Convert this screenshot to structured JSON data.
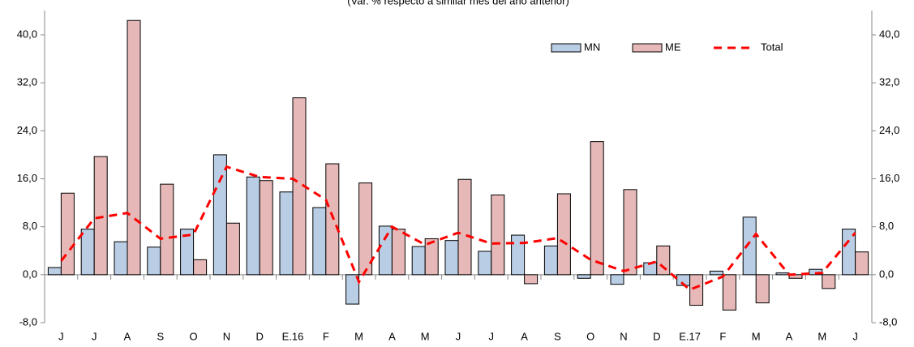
{
  "chart_data": {
    "type": "bar",
    "subtitle": "(Var. % respecto a similar mes del año anterior)",
    "categories": [
      "J",
      "J",
      "A",
      "S",
      "O",
      "N",
      "D",
      "E.16",
      "F",
      "M",
      "A",
      "M",
      "J",
      "J",
      "A",
      "S",
      "O",
      "N",
      "D",
      "E.17",
      "F",
      "M",
      "A",
      "M",
      "J"
    ],
    "series": [
      {
        "name": "MN",
        "type": "bar",
        "color": "#b9cde5",
        "values": [
          1.2,
          7.6,
          5.5,
          4.6,
          7.6,
          20.0,
          16.3,
          13.8,
          11.2,
          -4.9,
          8.1,
          4.7,
          5.7,
          3.9,
          6.6,
          4.8,
          -0.6,
          -1.6,
          2.0,
          -1.8,
          0.6,
          9.6,
          0.3,
          0.9,
          7.6
        ]
      },
      {
        "name": "ME",
        "type": "bar",
        "color": "#e6b9b8",
        "values": [
          13.6,
          19.7,
          42.4,
          15.1,
          2.5,
          8.6,
          15.7,
          29.5,
          18.5,
          15.3,
          7.6,
          6.0,
          15.9,
          13.3,
          -1.5,
          13.5,
          22.2,
          14.2,
          4.8,
          -5.1,
          -5.9,
          -4.7,
          -0.6,
          -2.3,
          3.8
        ]
      },
      {
        "name": "Total",
        "type": "line",
        "color": "#ff0000",
        "values": [
          2.3,
          9.4,
          10.3,
          6.0,
          6.7,
          18.0,
          16.3,
          16.0,
          12.5,
          -1.2,
          8.0,
          5.0,
          7.0,
          5.2,
          5.3,
          6.1,
          2.5,
          0.6,
          2.2,
          -2.5,
          -0.3,
          6.8,
          0.0,
          0.3,
          7.0
        ]
      }
    ],
    "ylim": [
      -8,
      40
    ],
    "yticks": [
      {
        "value": -8,
        "label": "-8,0"
      },
      {
        "value": 0,
        "label": "0,0"
      },
      {
        "value": 8,
        "label": "8,0"
      },
      {
        "value": 16,
        "label": "16,0"
      },
      {
        "value": 24,
        "label": "24,0"
      },
      {
        "value": 32,
        "label": "32,0"
      },
      {
        "value": 40,
        "label": "40,0"
      }
    ],
    "y2lim": [
      -8,
      40
    ],
    "y2ticks": [
      {
        "value": -8,
        "label": "-8,0"
      },
      {
        "value": 0,
        "label": "0,0"
      },
      {
        "value": 8,
        "label": "8,0"
      },
      {
        "value": 16,
        "label": "16,0"
      },
      {
        "value": 24,
        "label": "24,0"
      },
      {
        "value": 32,
        "label": "32,0"
      },
      {
        "value": 40,
        "label": "40,0"
      }
    ],
    "legend": "top-right"
  }
}
